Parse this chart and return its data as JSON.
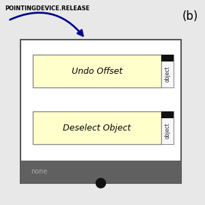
{
  "title_label": "(b)",
  "event_label": "POINTINGDEVICE.RELEASE",
  "task1_label": "Undo Offset",
  "task2_label": "Deselect Object",
  "port_label": "object",
  "bottom_label": "none",
  "bg_color": "#e8e8e8",
  "outer_box_color": "#ffffff",
  "outer_box_border": "#555555",
  "task_fill": "#ffffcc",
  "task_border": "#888888",
  "bottom_bar_color": "#606060",
  "arrow_color": "#00008b",
  "text_color_event": "#000000",
  "text_color_title": "#000000",
  "port_square_color": "#111111"
}
